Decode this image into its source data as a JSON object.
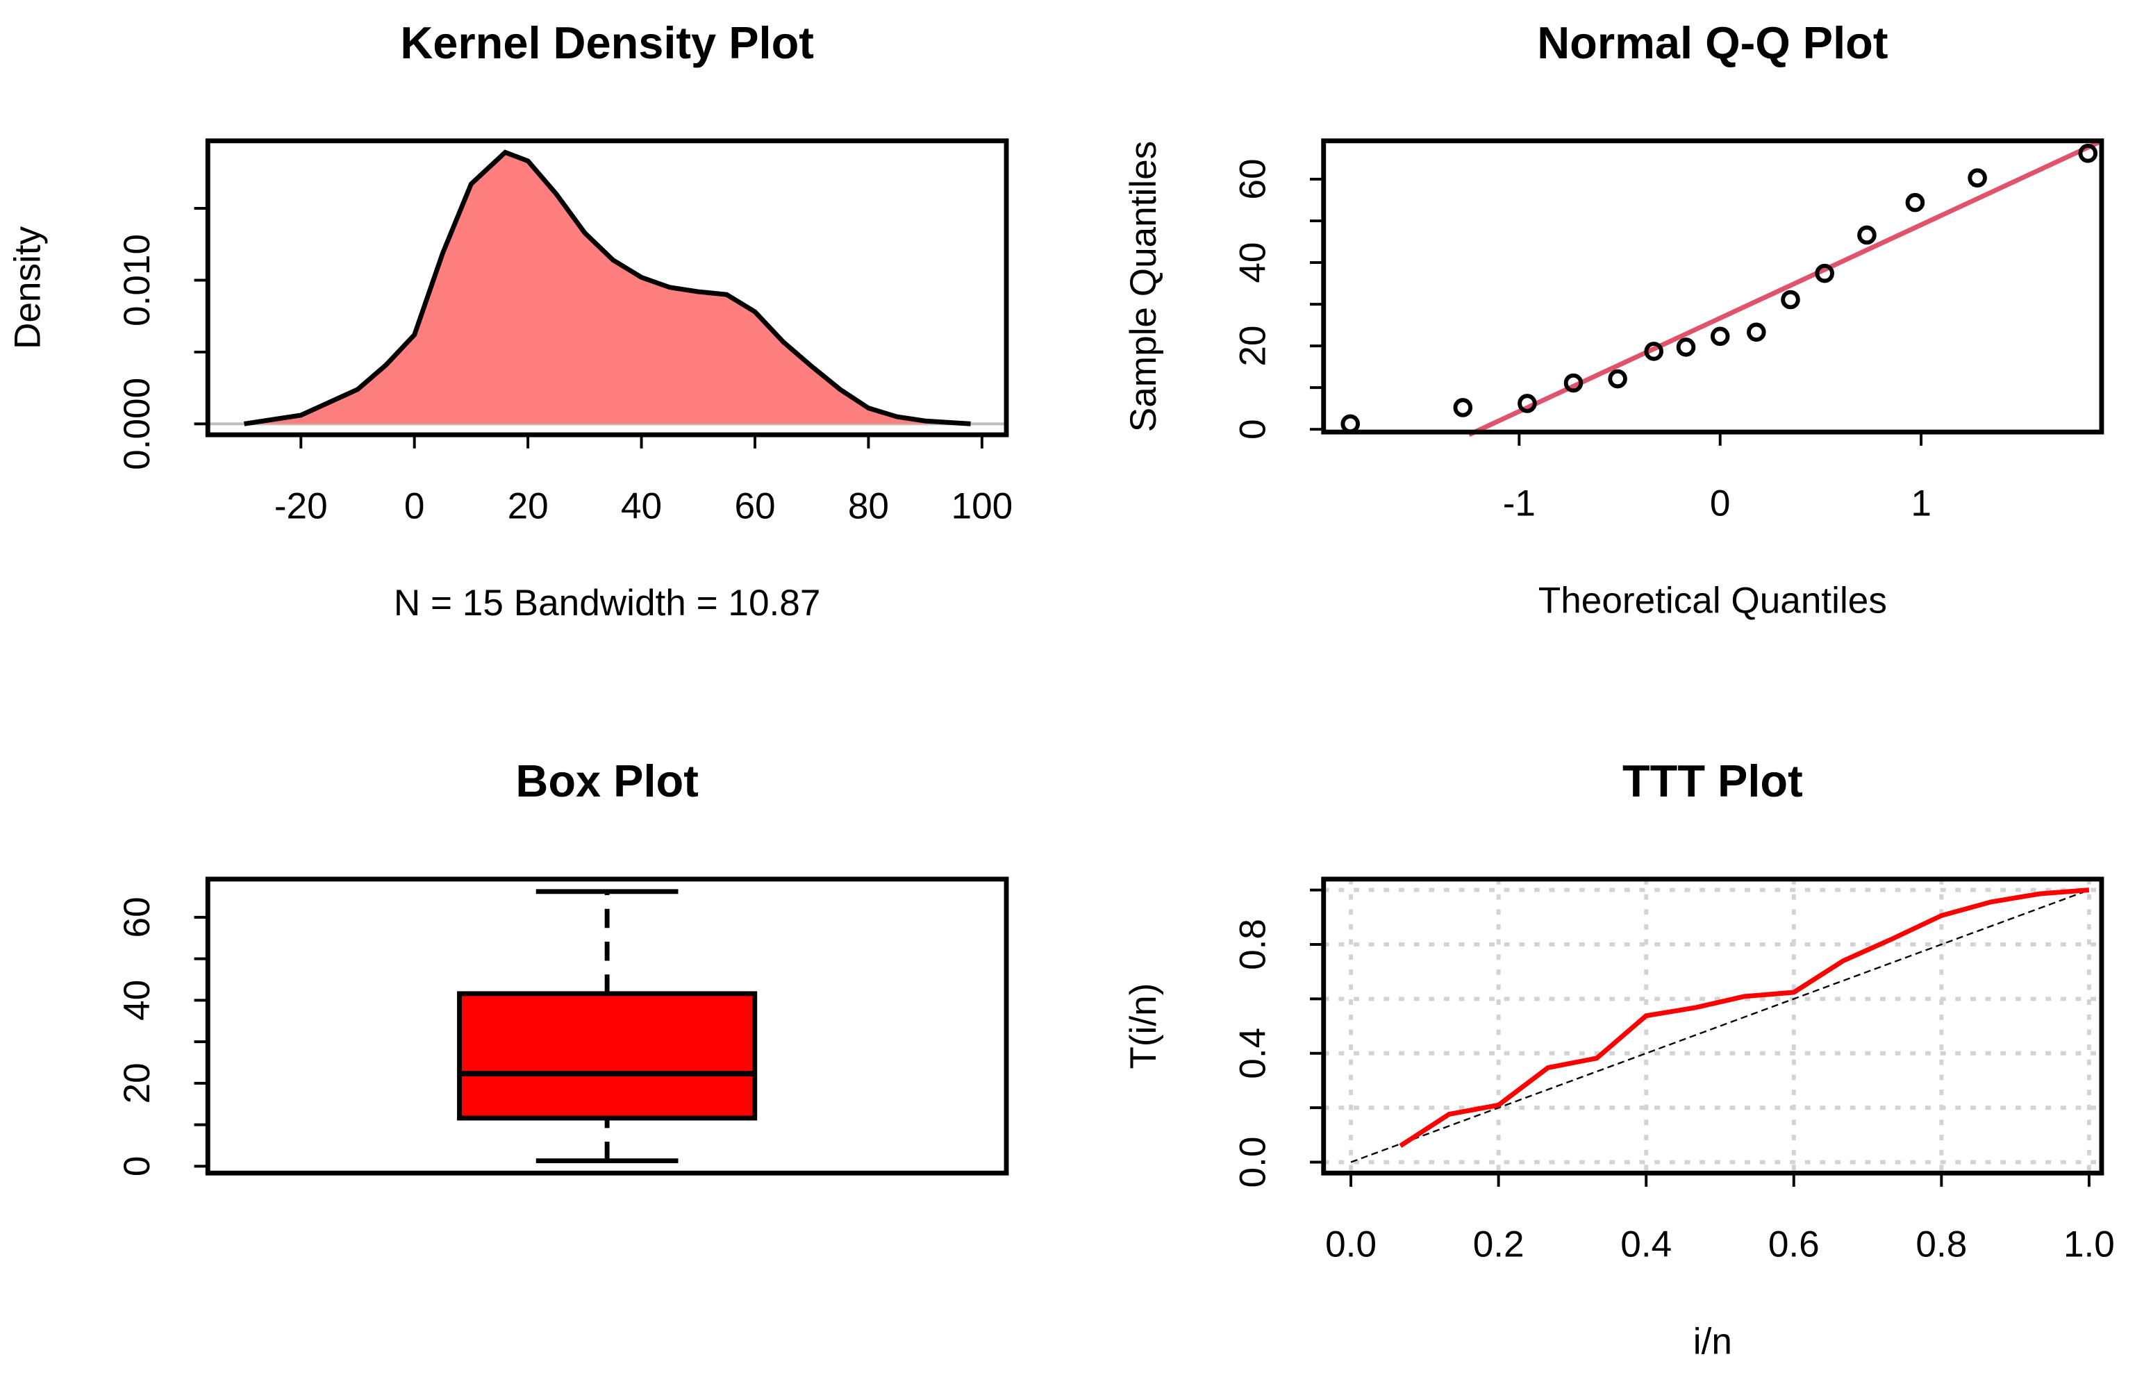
{
  "chart_data": [
    {
      "type": "density",
      "title": "Kernel Density Plot",
      "xlabel": "N = 15   Bandwidth = 10.87",
      "ylabel": "Density",
      "x": [
        -30,
        -20,
        -10,
        -5,
        0,
        5,
        10,
        16,
        20,
        25,
        30,
        35,
        40,
        45,
        50,
        55,
        60,
        65,
        70,
        75,
        80,
        85,
        90,
        98
      ],
      "values": [
        0,
        0.0006,
        0.0024,
        0.0041,
        0.0062,
        0.0119,
        0.0167,
        0.0189,
        0.0183,
        0.016,
        0.0133,
        0.0114,
        0.0102,
        0.0095,
        0.0092,
        0.009,
        0.0078,
        0.0057,
        0.004,
        0.0024,
        0.0011,
        0.0005,
        0.0002,
        0
      ],
      "color": "#FF7F7F",
      "line_color": "#000000",
      "xlim": [
        -36.4,
        104.3
      ],
      "xticks": [
        -20,
        0,
        20,
        40,
        60,
        80,
        100
      ],
      "ylim": [
        -0.00076,
        0.0197
      ],
      "yticks": [
        {
          "value": 0,
          "label": "0.000"
        },
        {
          "value": 0.01,
          "label": "0.010"
        }
      ],
      "minor_yticks": [
        0.005,
        0.015
      ]
    },
    {
      "type": "scatter",
      "title": "Normal Q-Q Plot",
      "xlabel": "Theoretical Quantiles",
      "ylabel": "Sample Quantiles",
      "x": [
        -1.84,
        -1.28,
        -0.96,
        -0.73,
        -0.51,
        -0.33,
        -0.17,
        0.0,
        0.18,
        0.35,
        0.52,
        0.73,
        0.97,
        1.28,
        1.83
      ],
      "values": [
        1.3,
        5.2,
        6.2,
        11.1,
        12.1,
        18.7,
        19.7,
        22.3,
        23.3,
        31.1,
        37.4,
        46.6,
        54.4,
        60.3,
        66.2
      ],
      "color": "#000000",
      "line": {
        "x": [
          -1.25,
          1.9
        ],
        "y": [
          -1.3,
          69.2
        ],
        "color": "#DF536B"
      },
      "xlim": [
        -1.973,
        1.898
      ],
      "xticks": [
        -1,
        0,
        1
      ],
      "ylim": [
        -0.66,
        69.2
      ],
      "yticks": [
        0,
        20,
        40,
        60
      ],
      "minor_yticks": [
        10,
        30,
        50
      ]
    },
    {
      "type": "box",
      "title": "Box Plot",
      "min": 1.3,
      "q1": 11.6,
      "median": 22.3,
      "q3": 41.6,
      "max": 66.2,
      "color": "#FF0000",
      "ylim": [
        -1.65,
        69.2
      ],
      "yticks": [
        0,
        20,
        40,
        60
      ],
      "minor_yticks": [
        10,
        30,
        50
      ]
    },
    {
      "type": "line",
      "title": "TTT Plot",
      "xlabel": "i/n",
      "ylabel": "T(i/n)",
      "x": [
        0.067,
        0.133,
        0.2,
        0.267,
        0.333,
        0.4,
        0.467,
        0.533,
        0.6,
        0.667,
        0.733,
        0.8,
        0.867,
        0.933,
        1.0
      ],
      "values": [
        0.06,
        0.176,
        0.21,
        0.347,
        0.382,
        0.538,
        0.568,
        0.609,
        0.624,
        0.74,
        0.82,
        0.906,
        0.956,
        0.986,
        1.0
      ],
      "color": "#FF0000",
      "reference_line": {
        "x": [
          0,
          1
        ],
        "y": [
          0,
          1
        ],
        "color": "#000000"
      },
      "grid": true,
      "xlim": [
        -0.037,
        1.017
      ],
      "xticks": [
        {
          "value": 0,
          "label": "0.0"
        },
        0.2,
        0.4,
        0.6,
        0.8,
        {
          "value": 1,
          "label": "1.0"
        }
      ],
      "ylim": [
        -0.04,
        1.04
      ],
      "yticks": [
        {
          "value": 0,
          "label": "0.0"
        },
        0.4,
        0.8
      ],
      "minor_yticks": [
        0.2,
        0.6,
        1
      ]
    }
  ]
}
